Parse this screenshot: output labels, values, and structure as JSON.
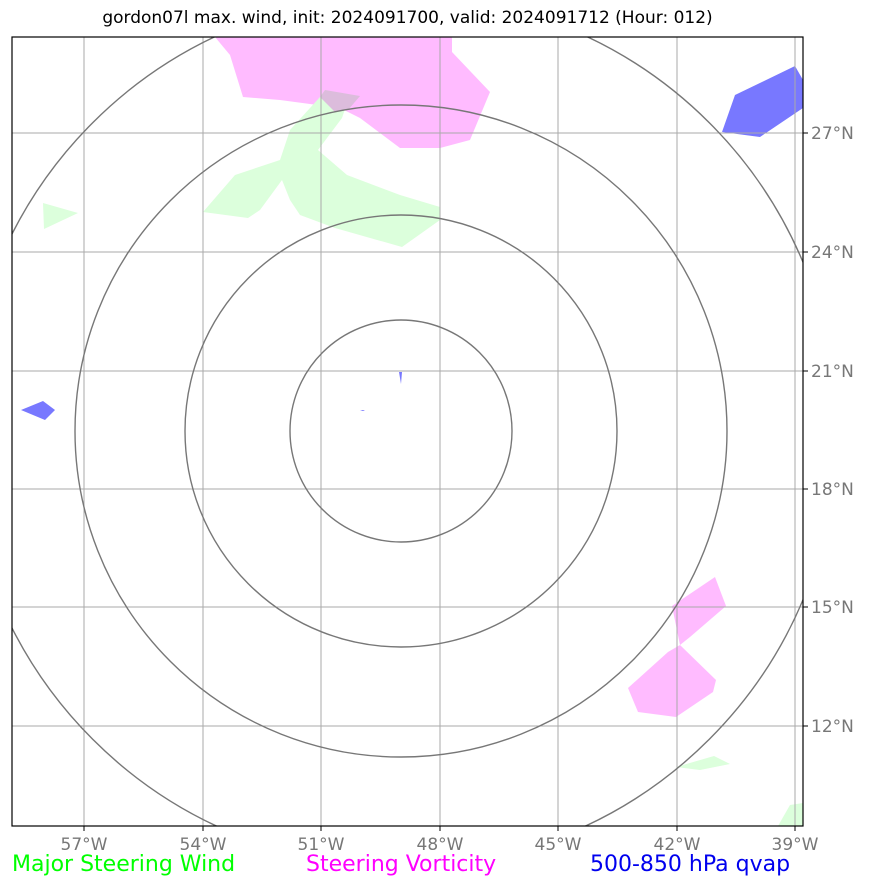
{
  "title": "gordon07l max. wind, init: 2024091700, valid: 2024091712 (Hour: 012)",
  "map": {
    "lon_labels": [
      "57°W",
      "54°W",
      "51°W",
      "48°W",
      "45°W",
      "42°W",
      "39°W"
    ],
    "lat_labels": [
      "27°N",
      "24°N",
      "21°N",
      "18°N",
      "15°N",
      "12°N"
    ]
  },
  "legend": [
    {
      "label": "Major Steering Wind",
      "color": "#00ff00"
    },
    {
      "label": "Steering Vorticity",
      "color": "#ff00ff"
    },
    {
      "label": "500-850 hPa qvap",
      "color": "#0000ee"
    }
  ],
  "colors": {
    "wind_fill": "#dcffdc",
    "vorticity_fill": "#ffbbff",
    "qvap_fill": "#7878ff",
    "grid": "#aaaaaa",
    "range_rings": "#777777"
  }
}
